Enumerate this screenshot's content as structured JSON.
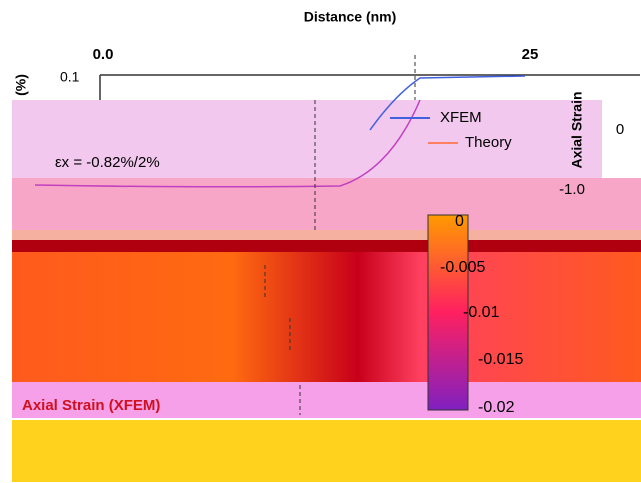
{
  "header": {
    "axis_title": "Distance (nm)",
    "tick_left": "0.0",
    "tick_right": "25"
  },
  "upper_panel": {
    "y_unit": "(%)",
    "y_tick": "0.1",
    "annotation": "εx = -0.82%/2%",
    "legend": [
      "XFEM",
      "Theory"
    ],
    "right_axis_title": "Axial Strain",
    "right_ticks": [
      "0",
      "-1.0"
    ]
  },
  "colorbar": {
    "ticks": [
      "0",
      "-0.005",
      "-0.01",
      "-0.015",
      "-0.02"
    ]
  },
  "lower_panel": {
    "label": "Axial Strain (XFEM)"
  }
}
